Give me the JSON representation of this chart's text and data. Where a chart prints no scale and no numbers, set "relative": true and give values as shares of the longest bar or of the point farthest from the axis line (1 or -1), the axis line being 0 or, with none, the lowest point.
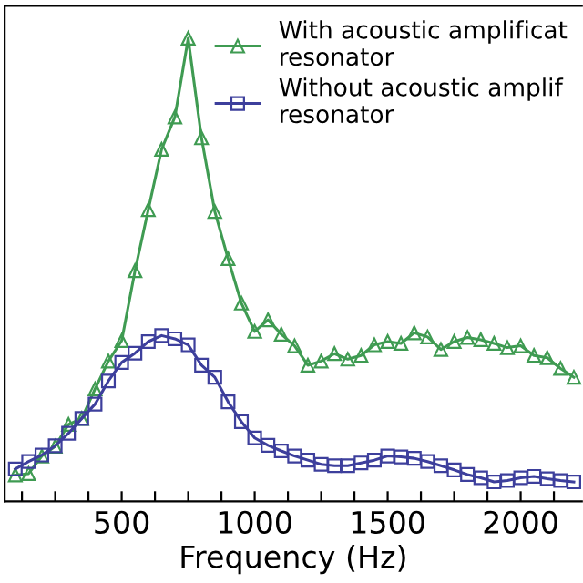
{
  "chart_data": {
    "type": "line",
    "relative": true,
    "xlabel": "Frequency (Hz)",
    "x": [
      100,
      150,
      200,
      250,
      300,
      350,
      400,
      450,
      500,
      550,
      600,
      650,
      700,
      750,
      800,
      850,
      900,
      950,
      1000,
      1050,
      1100,
      1150,
      1200,
      1250,
      1300,
      1350,
      1400,
      1450,
      1500,
      1550,
      1600,
      1650,
      1700,
      1750,
      1800,
      1850,
      1900,
      1950,
      2000,
      2050,
      2100,
      2150,
      2200
    ],
    "xlim": [
      60,
      2230
    ],
    "xticks": [
      {
        "value": 125,
        "label": null
      },
      {
        "value": 250,
        "label": null
      },
      {
        "value": 375,
        "label": null
      },
      500,
      {
        "value": 625,
        "label": null
      },
      {
        "value": 750,
        "label": null
      },
      {
        "value": 875,
        "label": null
      },
      1000,
      {
        "value": 1125,
        "label": null
      },
      {
        "value": 1250,
        "label": null
      },
      {
        "value": 1375,
        "label": null
      },
      1500,
      {
        "value": 1625,
        "label": null
      },
      {
        "value": 1750,
        "label": null
      },
      {
        "value": 1875,
        "label": null
      },
      2000,
      {
        "value": 2125,
        "label": null
      }
    ],
    "tick_labels": "x",
    "grid": false,
    "legend": "top right",
    "series": [
      {
        "name": "With acoustic amplificat\nresonator",
        "color": "#3f9b52",
        "marker": "triangle",
        "values": [
          0.057,
          0.06,
          0.098,
          0.119,
          0.166,
          0.179,
          0.243,
          0.303,
          0.347,
          0.498,
          0.63,
          0.76,
          0.83,
          1.0,
          0.785,
          0.626,
          0.524,
          0.428,
          0.367,
          0.392,
          0.361,
          0.336,
          0.294,
          0.303,
          0.319,
          0.307,
          0.315,
          0.338,
          0.345,
          0.341,
          0.364,
          0.355,
          0.328,
          0.345,
          0.354,
          0.349,
          0.341,
          0.332,
          0.336,
          0.315,
          0.31,
          0.287,
          0.268
        ]
      },
      {
        "name": "Without acoustic amplif\nresonator",
        "color": "#3d3f9c",
        "marker": "square",
        "values": [
          0.07,
          0.086,
          0.1,
          0.12,
          0.147,
          0.179,
          0.21,
          0.26,
          0.3,
          0.32,
          0.345,
          0.358,
          0.351,
          0.338,
          0.294,
          0.268,
          0.215,
          0.172,
          0.137,
          0.121,
          0.109,
          0.098,
          0.089,
          0.08,
          0.077,
          0.077,
          0.083,
          0.089,
          0.098,
          0.096,
          0.093,
          0.086,
          0.077,
          0.068,
          0.058,
          0.051,
          0.042,
          0.045,
          0.051,
          0.054,
          0.049,
          0.045,
          0.042
        ]
      }
    ]
  }
}
